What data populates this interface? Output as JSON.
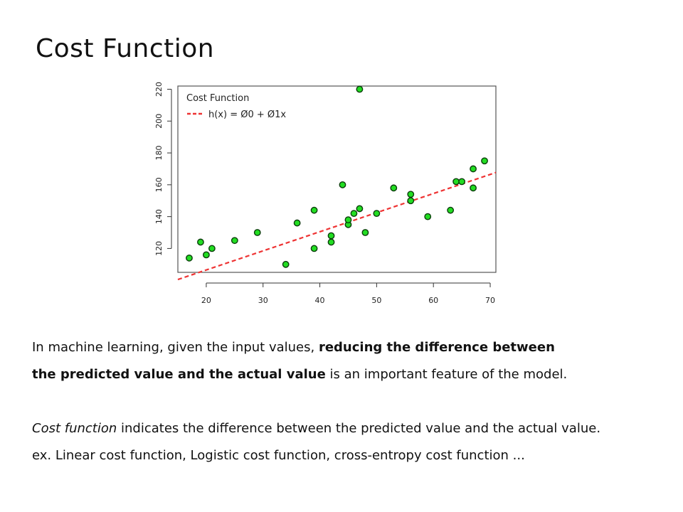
{
  "slide": {
    "title": "Cost Function"
  },
  "paragraphs": {
    "p1_normal": "In machine learning, given the input values, ",
    "p1_bold": "reducing the difference between",
    "p2_bold": "the predicted value and the actual value",
    "p2_normal": " is an important feature of the model.",
    "p3_italic": "Cost function",
    "p3_normal": " indicates the difference between the predicted value and the actual value.",
    "p4": "ex. Linear cost function, Logistic cost function, cross-entropy cost function ..."
  },
  "chart_data": {
    "type": "scatter",
    "title": "Cost Function",
    "line_label": "h(x) = Ø0 + Ø1x",
    "xlim": [
      15,
      71
    ],
    "ylim": [
      105,
      222
    ],
    "xticks": [
      20,
      30,
      40,
      50,
      60,
      70
    ],
    "yticks": [
      120,
      140,
      160,
      180,
      200,
      220
    ],
    "points": [
      [
        17,
        114
      ],
      [
        19,
        124
      ],
      [
        20,
        116
      ],
      [
        21,
        120
      ],
      [
        25,
        125
      ],
      [
        29,
        130
      ],
      [
        34,
        110
      ],
      [
        36,
        136
      ],
      [
        39,
        120
      ],
      [
        39,
        144
      ],
      [
        42,
        124
      ],
      [
        42,
        128
      ],
      [
        44,
        160
      ],
      [
        45,
        135
      ],
      [
        45,
        138
      ],
      [
        46,
        142
      ],
      [
        47,
        145
      ],
      [
        47,
        220
      ],
      [
        48,
        130
      ],
      [
        50,
        142
      ],
      [
        53,
        158
      ],
      [
        56,
        150
      ],
      [
        56,
        154
      ],
      [
        59,
        140
      ],
      [
        63,
        144
      ],
      [
        64,
        162
      ],
      [
        65,
        162
      ],
      [
        67,
        158
      ],
      [
        67,
        170
      ],
      [
        69,
        175
      ]
    ],
    "fit_line": {
      "intercept": 82.5,
      "slope": 1.2
    },
    "colors": {
      "point_fill": "#22dd22",
      "point_stroke": "#0b3d0b",
      "line": "#ee3333",
      "frame": "#555555"
    },
    "legend_position": "top-left"
  }
}
